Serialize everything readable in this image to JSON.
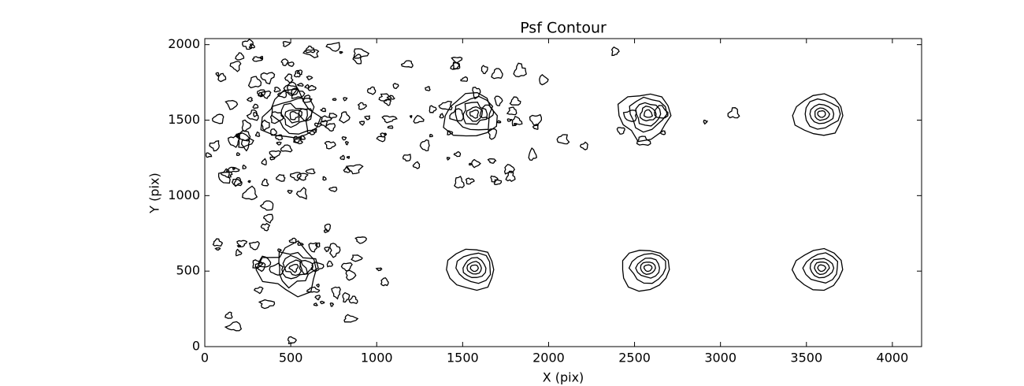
{
  "chart_data": {
    "type": "contour",
    "title": "Psf Contour",
    "x_label": "X (pix)",
    "y_label": "Y (pix)",
    "x": [
      500,
      1550,
      2560,
      3570,
      500,
      1550,
      2560,
      3570
    ],
    "values": [
      1520,
      1530,
      1530,
      1530,
      510,
      510,
      510,
      510
    ],
    "color": "#000000",
    "xlim": [
      0,
      4170
    ],
    "ylim": [
      0,
      2040
    ],
    "xticks": [
      0,
      500,
      1000,
      1500,
      2000,
      2500,
      3000,
      3500,
      4000
    ],
    "yticks": [
      0,
      500,
      1000,
      1500,
      2000
    ]
  }
}
